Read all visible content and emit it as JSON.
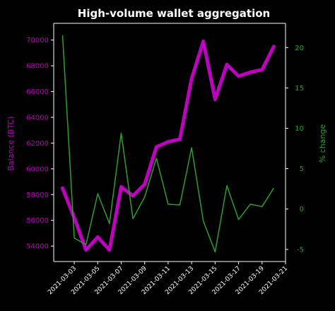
{
  "chart_data": {
    "type": "line",
    "title": "High-volume wallet aggregation",
    "xlabel": "",
    "ylabel_left": "Balance (BTC)",
    "ylabel_right": "% change",
    "colors": {
      "background": "#000000",
      "balance": "#c000c0",
      "pct_change": "#2ca02c",
      "axes": "#ffffff"
    },
    "x": [
      "2021-03-02",
      "2021-03-03",
      "2021-03-04",
      "2021-03-05",
      "2021-03-06",
      "2021-03-07",
      "2021-03-08",
      "2021-03-09",
      "2021-03-10",
      "2021-03-11",
      "2021-03-12",
      "2021-03-13",
      "2021-03-14",
      "2021-03-15",
      "2021-03-16",
      "2021-03-17",
      "2021-03-18",
      "2021-03-19",
      "2021-03-20"
    ],
    "x_tick_labels": [
      "2021-03-03",
      "2021-03-05",
      "2021-03-07",
      "2021-03-09",
      "2021-03-11",
      "2021-03-13",
      "2021-03-15",
      "2021-03-17",
      "2021-03-19",
      "2021-03-21"
    ],
    "xlim": [
      "2021-03-01T06:00",
      "2021-03-21T00:00"
    ],
    "series": [
      {
        "name": "Balance (BTC)",
        "axis": "left",
        "values": [
          58500,
          56200,
          53700,
          54700,
          53700,
          58600,
          57900,
          58800,
          61700,
          62100,
          62300,
          67000,
          69900,
          65400,
          68100,
          67200,
          67500,
          67700,
          69500
        ]
      },
      {
        "name": "% change",
        "axis": "right",
        "values": [
          21.5,
          -3.6,
          -4.4,
          1.9,
          -1.8,
          9.4,
          -1.2,
          1.5,
          6.3,
          0.6,
          0.5,
          7.6,
          -1.5,
          -5.3,
          2.9,
          -1.3,
          0.6,
          0.3,
          2.6
        ]
      }
    ],
    "ylim_left": [
      52800,
      71300
    ],
    "ylim_right": [
      -6.5,
      23.0
    ],
    "yticks_left": [
      "54000",
      "56000",
      "58000",
      "60000",
      "62000",
      "64000",
      "66000",
      "68000",
      "70000"
    ],
    "yticks_right": [
      "-5",
      "0",
      "5",
      "10",
      "15",
      "20"
    ],
    "grid": false,
    "legend": "none"
  }
}
